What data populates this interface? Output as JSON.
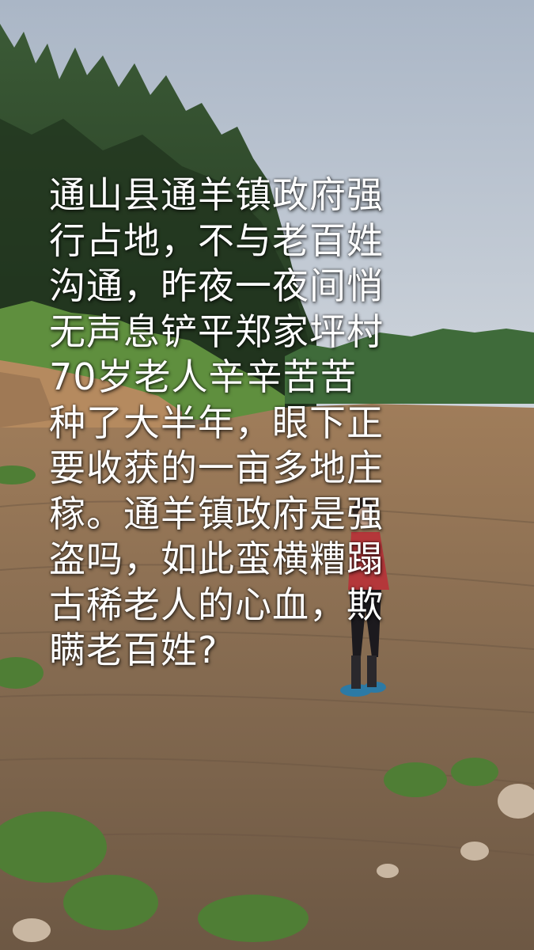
{
  "caption": {
    "lines": [
      "通山县通羊镇政府强",
      "行占地，不与老百姓",
      "沟通，昨夜一夜间悄",
      "无声息铲平郑家坪村",
      "70岁老人辛辛苦苦",
      "种了大半年，眼下正",
      "要收获的一亩多地庄",
      "稼。通羊镇政府是强",
      "盗吗，如此蛮横糟蹋",
      "古稀老人的心血，欺",
      "瞒老百姓?"
    ]
  },
  "colors": {
    "sky": "#b9c3cf",
    "forest": "#2f4a2c",
    "soil": "#8a6e52",
    "text": "#ffffff"
  }
}
